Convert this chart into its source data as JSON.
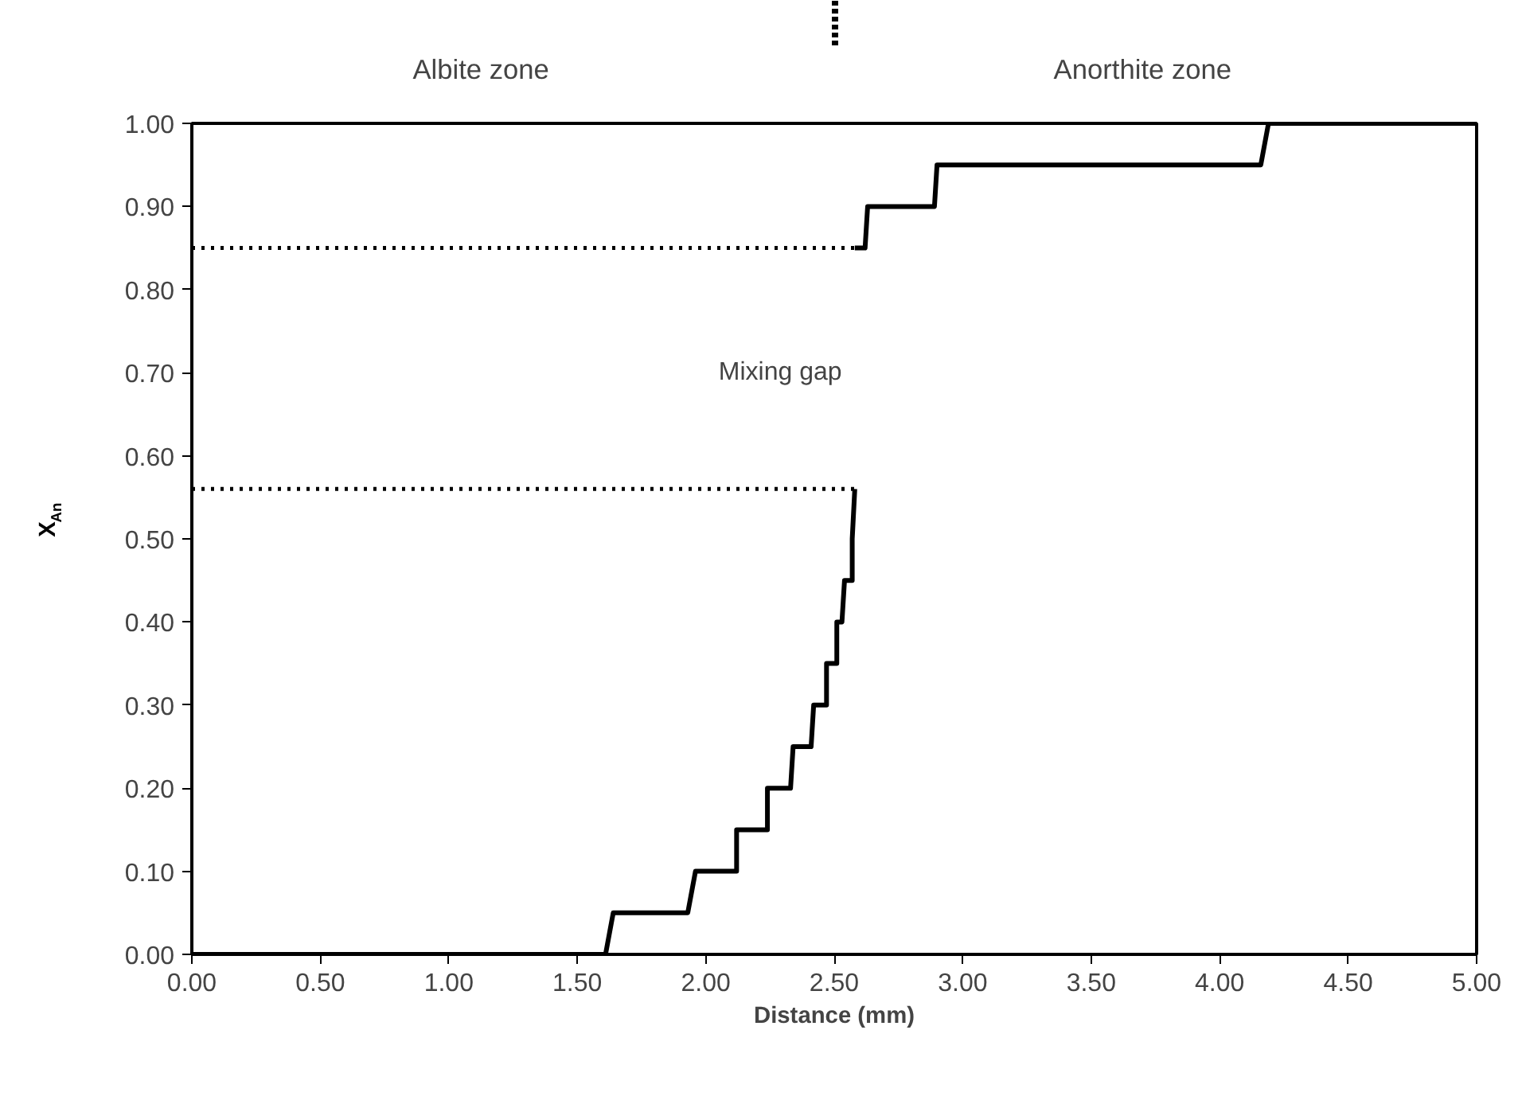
{
  "chart_data": {
    "type": "line",
    "xlabel": "Distance (mm)",
    "ylabel": "X$_{An}$",
    "annotations": [
      "Albite zone",
      "Anorthite zone",
      "Mixing gap"
    ],
    "xlim": [
      0,
      5
    ],
    "ylim": [
      0,
      1
    ],
    "xticks": [
      {
        "value": 0,
        "label": "0.00"
      },
      {
        "value": 0.5,
        "label": "0.50"
      },
      {
        "value": 1,
        "label": "1.00"
      },
      {
        "value": 1.5,
        "label": "1.50"
      },
      {
        "value": 2,
        "label": "2.00"
      },
      {
        "value": 2.5,
        "label": "2.50"
      },
      {
        "value": 3,
        "label": "3.00"
      },
      {
        "value": 3.5,
        "label": "3.50"
      },
      {
        "value": 4,
        "label": "4.00"
      },
      {
        "value": 4.5,
        "label": "4.50"
      },
      {
        "value": 5,
        "label": "5.00"
      }
    ],
    "yticks": [
      {
        "value": 0,
        "label": "0.00"
      },
      {
        "value": 0.1,
        "label": "0.10"
      },
      {
        "value": 0.2,
        "label": "0.20"
      },
      {
        "value": 0.3,
        "label": "0.30"
      },
      {
        "value": 0.4,
        "label": "0.40"
      },
      {
        "value": 0.5,
        "label": "0.50"
      },
      {
        "value": 0.6,
        "label": "0.60"
      },
      {
        "value": 0.7,
        "label": "0.70"
      },
      {
        "value": 0.8,
        "label": "0.80"
      },
      {
        "value": 0.9,
        "label": "0.90"
      },
      {
        "value": 1,
        "label": "1.00"
      }
    ],
    "grid": false,
    "marker": "none",
    "series": [
      {
        "color": "#000000",
        "line_style": "solid",
        "x": [
          0,
          1.61,
          1.64,
          1.93,
          1.96,
          2.12,
          2.12,
          2.24,
          2.24,
          2.33,
          2.34,
          2.41,
          2.42,
          2.47,
          2.47,
          2.51,
          2.51,
          2.53,
          2.54,
          2.57,
          2.57,
          2.58
        ],
        "values": [
          0,
          0,
          0.05,
          0.05,
          0.1,
          0.1,
          0.15,
          0.15,
          0.2,
          0.2,
          0.25,
          0.25,
          0.3,
          0.3,
          0.35,
          0.35,
          0.4,
          0.4,
          0.45,
          0.45,
          0.5,
          0.56
        ]
      },
      {
        "color": "#000000",
        "line_style": "dotted",
        "x": [
          0,
          2.58
        ],
        "values": [
          0.56,
          0.56
        ]
      },
      {
        "color": "#000000",
        "line_style": "dotted",
        "x": [
          0,
          2.58
        ],
        "values": [
          0.85,
          0.85
        ]
      },
      {
        "color": "#000000",
        "line_style": "solid",
        "x": [
          2.58,
          2.62,
          2.63,
          2.89,
          2.9,
          4.16,
          4.19,
          5.0
        ],
        "values": [
          0.85,
          0.85,
          0.9,
          0.9,
          0.95,
          0.95,
          1.0,
          1.0
        ]
      }
    ]
  }
}
